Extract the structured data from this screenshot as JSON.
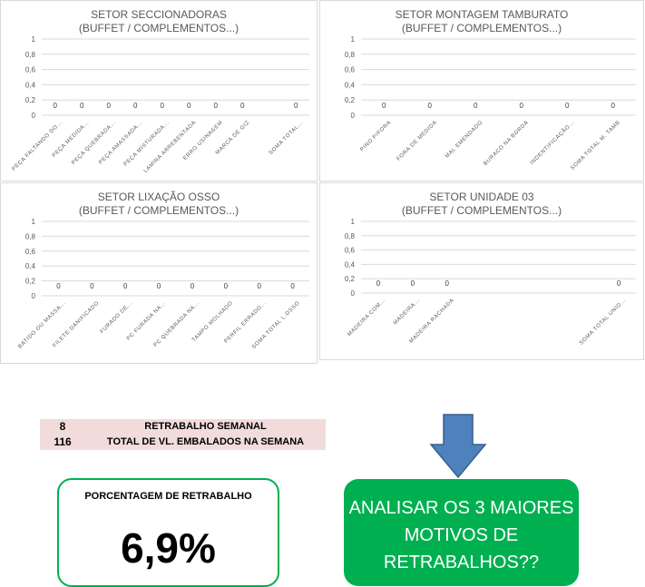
{
  "chart_data": [
    {
      "type": "bar",
      "title": "SETOR SECCIONADORAS",
      "subtitle": "(BUFFET / COMPLEMENTOS...)",
      "yticks": [
        "1",
        "0,8",
        "0,6",
        "0,4",
        "0,2",
        "0"
      ],
      "ylim": [
        0,
        1
      ],
      "categories": [
        "PEÇA FALTANDO DO...",
        "PEÇA MEDIDA...",
        "PEÇA QUEBRADA...",
        "PEÇA AMASSADA...",
        "PEÇA MISTURADA...",
        "LAMINA ARREBENTADA",
        "ERRO USINAGEM",
        "MARCA DE GIZ",
        "",
        "SOMA TOTAL..."
      ],
      "values": [
        0,
        0,
        0,
        0,
        0,
        0,
        0,
        0,
        null,
        0
      ],
      "data_labels": [
        "0",
        "0",
        "0",
        "0",
        "0",
        "0",
        "0",
        "0",
        "",
        "0"
      ],
      "grid": true,
      "color": "#a6a6a6"
    },
    {
      "type": "bar",
      "title": "SETOR MONTAGEM TAMBURATO",
      "subtitle": "(BUFFET / COMPLEMENTOS...)",
      "yticks": [
        "1",
        "0,8",
        "0,6",
        "0,4",
        "0,2",
        "0"
      ],
      "ylim": [
        0,
        1
      ],
      "categories": [
        "PINO P/FORA",
        "FORA DE MEDIDA",
        "MAL EMENDADO",
        "BURACO NA BORDA",
        "INDENTIFICAÇÃO...",
        "SOMA TOTAL M. TAMB"
      ],
      "values": [
        0,
        0,
        0,
        0,
        0,
        0
      ],
      "data_labels": [
        "0",
        "0",
        "0",
        "0",
        "0",
        "0"
      ],
      "grid": true,
      "color": "#a6a6a6"
    },
    {
      "type": "bar",
      "title": "SETOR LIXAÇÃO OSSO",
      "subtitle": "(BUFFET / COMPLEMENTOS...)",
      "yticks": [
        "1",
        "0,8",
        "0,6",
        "0,4",
        "0,2",
        "0"
      ],
      "ylim": [
        0,
        1
      ],
      "categories": [
        "BATIDO OU MASSA...",
        "FILETE DANIFICADO",
        "FURADO DE...",
        "PC FURADA NA...",
        "PC QUEBRADA NA...",
        "TAMPO MOLHADO",
        "PERFIL ERRADO...",
        "SOMA TOTAL L.OSSO"
      ],
      "values": [
        0,
        0,
        0,
        0,
        0,
        0,
        0,
        0
      ],
      "data_labels": [
        "0",
        "0",
        "0",
        "0",
        "0",
        "0",
        "0",
        "0"
      ],
      "grid": true,
      "color": "#a6a6a6"
    },
    {
      "type": "bar",
      "title": "SETOR UNIDADE 03",
      "subtitle": "(BUFFET / COMPLEMENTOS...)",
      "yticks": [
        "1",
        "0,8",
        "0,6",
        "0,4",
        "0,2",
        "0"
      ],
      "ylim": [
        0,
        1
      ],
      "categories": [
        "MADEIRA COM...",
        "MADEIRA...",
        "MADEIRA RACHADA",
        "",
        "",
        "",
        "",
        "SOMA TOTAL UNID..."
      ],
      "values": [
        0,
        0,
        0,
        null,
        null,
        null,
        null,
        0
      ],
      "data_labels": [
        "0",
        "0",
        "0",
        "",
        "",
        "",
        "",
        "0"
      ],
      "grid": true,
      "color": "#a6a6a6"
    }
  ],
  "summary": {
    "rows": [
      {
        "value": "8",
        "label": "RETRABALHO SEMANAL"
      },
      {
        "value": "116",
        "label": "TOTAL DE VL. EMBALADOS NA SEMANA"
      }
    ]
  },
  "percentage": {
    "label": "PORCENTAGEM DE RETRABALHO",
    "value": "6,9%"
  },
  "action": {
    "lines": [
      "ANALISAR OS 3 MAIORES",
      "MOTIVOS DE",
      "RETRABALHOS??"
    ]
  },
  "colors": {
    "accent_green": "#00b050",
    "arrow_blue": "#4f81bd",
    "table_pink": "#f2dcdb",
    "grid": "#d9d9d9"
  }
}
